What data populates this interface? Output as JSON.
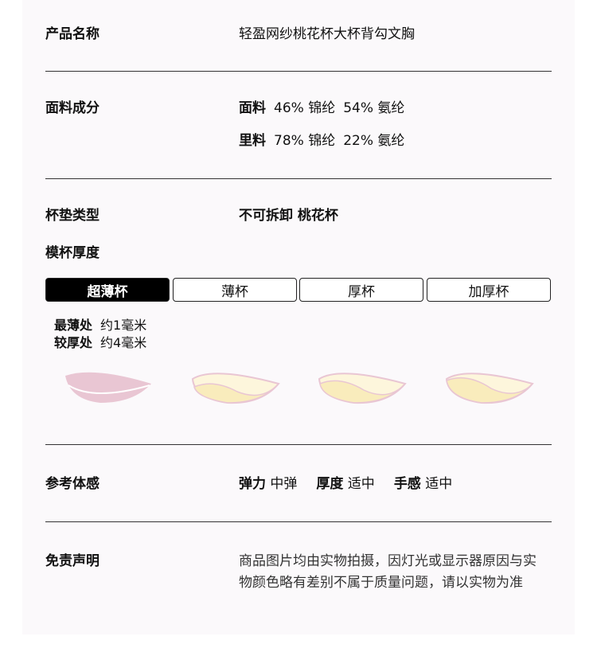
{
  "product_name": {
    "label": "产品名称",
    "value": "轻盈网纱桃花杯大杯背勾文胸"
  },
  "fabric": {
    "label": "面料成分",
    "rows": [
      {
        "part": "面料",
        "a": "46% 锦纶",
        "b": "54% 氨纶"
      },
      {
        "part": "里料",
        "a": "78% 锦纶",
        "b": "22% 氨纶"
      }
    ]
  },
  "pad_type": {
    "label": "杯垫类型",
    "value": "不可拆卸 桃花杯"
  },
  "thickness": {
    "label": "模杯厚度",
    "tabs": [
      "超薄杯",
      "薄杯",
      "厚杯",
      "加厚杯"
    ],
    "selected": "超薄杯",
    "details": [
      {
        "k": "最薄处",
        "v": "约1毫米"
      },
      {
        "k": "较厚处",
        "v": "约4毫米"
      }
    ]
  },
  "feel": {
    "label": "参考体感",
    "items": [
      {
        "k": "弹力",
        "v": "中弹"
      },
      {
        "k": "厚度",
        "v": "适中"
      },
      {
        "k": "手感",
        "v": "适中"
      }
    ]
  },
  "disclaimer": {
    "label": "免责声明",
    "lines": [
      "商品图片均由实物拍摄，因灯光或显示器原因与实",
      "物颜色略有差别不属于质量问题，请以实物为准"
    ]
  },
  "colors": {
    "pink": "#e9c6d3",
    "cream": "#fdf6dc",
    "yellow": "#f9ecbc",
    "card_bg": "#fbf9fb"
  }
}
